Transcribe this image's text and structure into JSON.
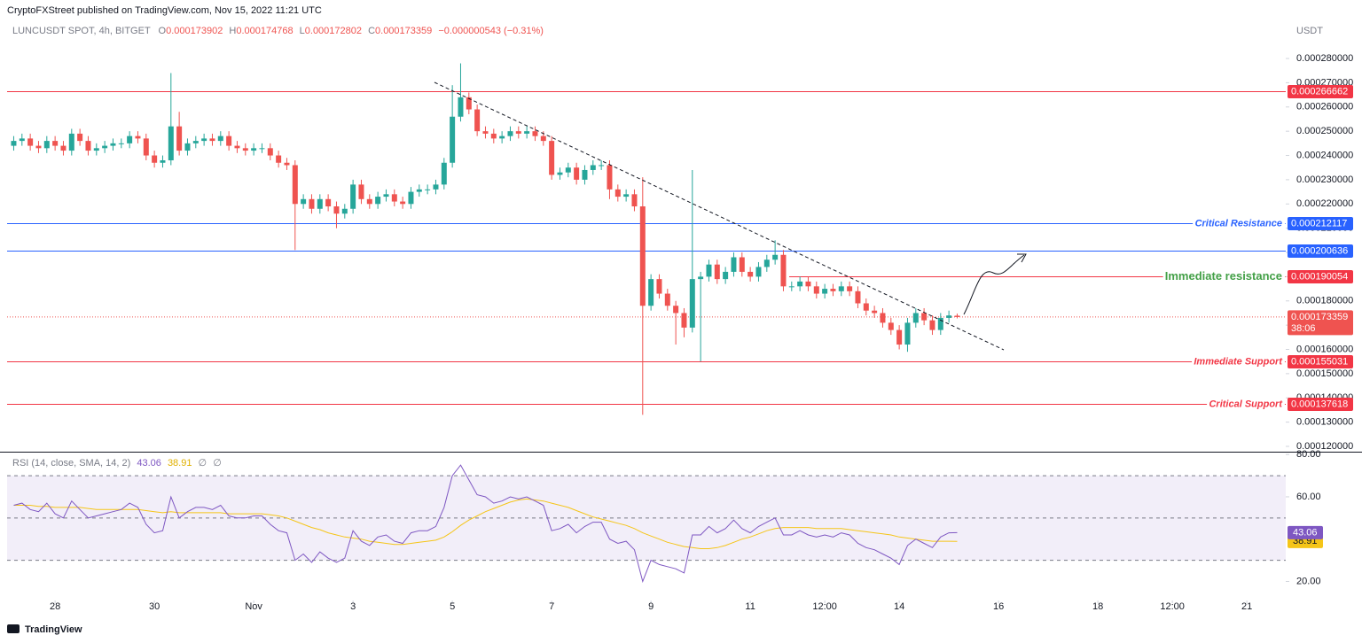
{
  "published": "CryptoFXStreet published on TradingView.com, Nov 15, 2022 11:21 UTC",
  "logo": "TradingView",
  "chart_data": [
    {
      "type": "candlestick",
      "title": "LUNCUSDT SPOT, 4h, BITGET",
      "currency": "USDT",
      "ohlc_labels": [
        "O",
        "H",
        "L",
        "C"
      ],
      "change": "−0.000000543 (−0.31%)",
      "last_price_countdown": "38:06",
      "up_color": "#26a69a",
      "down_color": "#ef5350",
      "grid": false,
      "open": [
        0.000244,
        0.000246,
        0.000247,
        0.000244,
        0.000243,
        0.000246,
        0.000244,
        0.000242,
        0.000249,
        0.000246,
        0.000242,
        0.000243,
        0.000244,
        0.000245,
        0.000245,
        0.000248,
        0.000247,
        0.00024,
        0.000237,
        0.000238,
        0.000252,
        0.000242,
        0.000245,
        0.000246,
        0.000247,
        0.000246,
        0.000248,
        0.000244,
        0.000243,
        0.000242,
        0.000243,
        0.000243,
        0.00024,
        0.000237,
        0.000236,
        0.00022,
        0.000222,
        0.000218,
        0.000222,
        0.000219,
        0.000216,
        0.000218,
        0.000228,
        0.000222,
        0.00022,
        0.000223,
        0.000224,
        0.000221,
        0.00022,
        0.000225,
        0.000226,
        0.000226,
        0.000228,
        0.000237,
        0.000256,
        0.000264,
        0.000259,
        0.00025,
        0.000249,
        0.000247,
        0.000248,
        0.00025,
        0.000249,
        0.00025,
        0.000248,
        0.000246,
        0.000232,
        0.000233,
        0.000235,
        0.00023,
        0.000234,
        0.000236,
        0.000236,
        0.000226,
        0.000223,
        0.000224,
        0.000219,
        0.000178,
        0.000189,
        0.000183,
        0.000178,
        0.000175,
        0.000169,
        0.000189,
        0.00019,
        0.000195,
        0.000189,
        0.000192,
        0.000198,
        0.000192,
        0.00019,
        0.000194,
        0.000197,
        0.000199,
        0.000186,
        0.000186,
        0.000188,
        0.000186,
        0.000183,
        0.000185,
        0.000184,
        0.000186,
        0.000184,
        0.000179,
        0.000176,
        0.000175,
        0.000171,
        0.000168,
        0.000162,
        0.000171,
        0.000175,
        0.000172,
        0.000168,
        0.000173,
        0.000173902
      ],
      "high": [
        0.000248,
        0.000249,
        0.000249,
        0.000246,
        0.000248,
        0.000248,
        0.000246,
        0.000251,
        0.000251,
        0.000248,
        0.000245,
        0.000246,
        0.000247,
        0.000247,
        0.00025,
        0.00025,
        0.000249,
        0.000242,
        0.00024,
        0.000274,
        0.000258,
        0.000247,
        0.000248,
        0.000249,
        0.000249,
        0.00025,
        0.00025,
        0.000246,
        0.000245,
        0.000245,
        0.000245,
        0.000245,
        0.000242,
        0.000239,
        0.000238,
        0.000224,
        0.000224,
        0.000224,
        0.000224,
        0.000221,
        0.00022,
        0.00023,
        0.00023,
        0.000224,
        0.000225,
        0.000226,
        0.000226,
        0.000223,
        0.000227,
        0.000228,
        0.000228,
        0.00023,
        0.000239,
        0.000269,
        0.000278,
        0.000266,
        0.000261,
        0.000252,
        0.000251,
        0.00025,
        0.000252,
        0.000252,
        0.000252,
        0.000252,
        0.00025,
        0.000248,
        0.000235,
        0.000237,
        0.000237,
        0.000236,
        0.000238,
        0.000238,
        0.000238,
        0.000228,
        0.000226,
        0.000226,
        0.000231,
        0.000191,
        0.000191,
        0.000185,
        0.00018,
        0.000177,
        0.000234,
        0.000192,
        0.000197,
        0.000197,
        0.000194,
        0.0002,
        0.0002,
        0.000194,
        0.000196,
        0.000199,
        0.000205,
        0.000201,
        0.000188,
        0.00019,
        0.00019,
        0.000188,
        0.000187,
        0.000187,
        0.000188,
        0.000188,
        0.000186,
        0.000181,
        0.000178,
        0.000177,
        0.000173,
        0.00017,
        0.000173,
        0.000177,
        0.000177,
        0.000174,
        0.000175,
        0.000176,
        0.000174768
      ],
      "low": [
        0.000242,
        0.000244,
        0.000242,
        0.000241,
        0.000241,
        0.000242,
        0.00024,
        0.00024,
        0.000244,
        0.00024,
        0.00024,
        0.000241,
        0.000242,
        0.000243,
        0.000243,
        0.000245,
        0.000238,
        0.000235,
        0.000235,
        0.000236,
        0.00024,
        0.00024,
        0.000243,
        0.000244,
        0.000244,
        0.000244,
        0.000242,
        0.000241,
        0.00024,
        0.00024,
        0.000241,
        0.000238,
        0.000235,
        0.000234,
        0.000201,
        0.000218,
        0.000216,
        0.000216,
        0.000217,
        0.00021,
        0.000214,
        0.000216,
        0.00022,
        0.000218,
        0.000218,
        0.000221,
        0.000219,
        0.000218,
        0.000218,
        0.000223,
        0.000224,
        0.000224,
        0.000226,
        0.000235,
        0.000254,
        0.000257,
        0.000248,
        0.000247,
        0.000245,
        0.000245,
        0.000246,
        0.000247,
        0.000247,
        0.000246,
        0.000244,
        0.00023,
        0.00023,
        0.000231,
        0.000228,
        0.000228,
        0.000232,
        0.000234,
        0.000222,
        0.000221,
        0.000221,
        0.000217,
        0.000133,
        0.000176,
        0.000181,
        0.000176,
        0.000162,
        0.000165,
        0.000167,
        0.000155,
        0.000188,
        0.000187,
        0.000187,
        0.00019,
        0.00019,
        0.000188,
        0.000188,
        0.000192,
        0.000195,
        0.000184,
        0.000184,
        0.000184,
        0.000184,
        0.000181,
        0.000181,
        0.000182,
        0.000182,
        0.000182,
        0.000177,
        0.000174,
        0.000173,
        0.000169,
        0.000166,
        0.00016,
        0.000159,
        0.000169,
        0.00017,
        0.000166,
        0.000166,
        0.000171,
        0.000172802
      ],
      "close": [
        0.000246,
        0.000247,
        0.000244,
        0.000243,
        0.000246,
        0.000244,
        0.000242,
        0.000249,
        0.000246,
        0.000242,
        0.000243,
        0.000244,
        0.000245,
        0.000245,
        0.000248,
        0.000247,
        0.00024,
        0.000237,
        0.000238,
        0.000252,
        0.000242,
        0.000245,
        0.000246,
        0.000247,
        0.000246,
        0.000248,
        0.000244,
        0.000243,
        0.000242,
        0.000243,
        0.000243,
        0.00024,
        0.000237,
        0.000236,
        0.00022,
        0.000222,
        0.000218,
        0.000222,
        0.000219,
        0.000216,
        0.000218,
        0.000228,
        0.000222,
        0.00022,
        0.000223,
        0.000224,
        0.000221,
        0.00022,
        0.000225,
        0.000226,
        0.000226,
        0.000228,
        0.000237,
        0.000256,
        0.000264,
        0.000259,
        0.00025,
        0.000249,
        0.000247,
        0.000248,
        0.00025,
        0.000249,
        0.00025,
        0.000248,
        0.000246,
        0.000232,
        0.000233,
        0.000235,
        0.00023,
        0.000234,
        0.000236,
        0.000236,
        0.000226,
        0.000223,
        0.000224,
        0.000219,
        0.000178,
        0.000189,
        0.000183,
        0.000178,
        0.000175,
        0.000169,
        0.000189,
        0.00019,
        0.000195,
        0.000189,
        0.000192,
        0.000198,
        0.000192,
        0.00019,
        0.000194,
        0.000197,
        0.000199,
        0.000186,
        0.000186,
        0.000188,
        0.000186,
        0.000183,
        0.000185,
        0.000184,
        0.000186,
        0.000184,
        0.000179,
        0.000176,
        0.000175,
        0.000171,
        0.000168,
        0.000162,
        0.000171,
        0.000175,
        0.000172,
        0.000168,
        0.000173,
        0.000174,
        0.000173359
      ],
      "xlim": [
        -0.8,
        153.7
      ],
      "xticks": [
        {
          "value": 5,
          "label": "28"
        },
        {
          "value": 17,
          "label": "30"
        },
        {
          "value": 29,
          "label": "Nov"
        },
        {
          "value": 41,
          "label": "3"
        },
        {
          "value": 53,
          "label": "5"
        },
        {
          "value": 65,
          "label": "7"
        },
        {
          "value": 77,
          "label": "9"
        },
        {
          "value": 89,
          "label": "11"
        },
        {
          "value": 98,
          "label": "12:00"
        },
        {
          "value": 107,
          "label": "14"
        },
        {
          "value": 119,
          "label": "16"
        },
        {
          "value": 131,
          "label": "18"
        },
        {
          "value": 140,
          "label": "12:00"
        },
        {
          "value": 149,
          "label": "21"
        }
      ],
      "ylim": [
        0.0001178,
        0.000295
      ],
      "yticks": [
        {
          "value": 0.00012,
          "label": "0.000120000"
        },
        {
          "value": 0.00013,
          "label": "0.000130000"
        },
        {
          "value": 0.00014,
          "label": "0.000140000"
        },
        {
          "value": 0.00015,
          "label": "0.000150000"
        },
        {
          "value": 0.00016,
          "label": "0.000160000"
        },
        {
          "value": 0.00017,
          "label": "0.000170000"
        },
        {
          "value": 0.00018,
          "label": "0.000180000"
        },
        {
          "value": 0.00019,
          "label": "0.000190000"
        },
        {
          "value": 0.0002,
          "label": "0.000200000"
        },
        {
          "value": 0.00021,
          "label": "0.000210000"
        },
        {
          "value": 0.00022,
          "label": "0.000220000"
        },
        {
          "value": 0.00023,
          "label": "0.000230000"
        },
        {
          "value": 0.00024,
          "label": "0.000240000"
        },
        {
          "value": 0.00025,
          "label": "0.000250000"
        },
        {
          "value": 0.00026,
          "label": "0.000260000"
        },
        {
          "value": 0.00027,
          "label": "0.000270000"
        },
        {
          "value": 0.00028,
          "label": "0.000280000"
        }
      ],
      "levels": [
        {
          "value": 0.000266662,
          "color": "#f23645"
        },
        {
          "value": 0.000212117,
          "color": "#2962ff",
          "label": "Critical Resistance",
          "label_color": "#2962ff"
        },
        {
          "value": 0.000200636,
          "color": "#2962ff"
        },
        {
          "value": 0.000190054,
          "color": "#f23645",
          "label": "Immediate resistance",
          "label_color": "#43a047"
        },
        {
          "value": 0.000155031,
          "color": "#f23645",
          "label": "Immediate Support",
          "label_color": "#f23645"
        },
        {
          "value": 0.000137618,
          "color": "#f23645",
          "label": "Critical Support",
          "label_color": "#f23645"
        }
      ]
    },
    {
      "type": "line",
      "title": "RSI (14, close, SMA, 14, 2)",
      "flags": [
        "∅",
        "∅"
      ],
      "band": [
        30,
        70
      ],
      "midline": 50,
      "band_color": "#7e57c2",
      "ylim": [
        11,
        80.5
      ],
      "yticks": [
        {
          "value": 80,
          "label": "80.00"
        },
        {
          "value": 60,
          "label": "60.00"
        },
        {
          "value": 20,
          "label": "20.00"
        }
      ],
      "series": [
        {
          "color": "#7e57c2",
          "values": [
            56,
            57,
            54,
            53,
            57,
            52,
            50,
            58,
            54,
            50,
            51,
            52,
            53,
            54,
            57,
            55,
            47,
            43,
            44,
            60,
            50,
            53,
            55,
            55,
            54,
            56,
            51,
            50,
            50,
            51,
            51,
            47,
            44,
            43,
            30,
            33,
            29,
            34,
            31,
            29,
            31,
            44,
            39,
            37,
            41,
            42,
            39,
            38,
            43,
            44,
            44,
            46,
            55,
            70,
            75,
            68,
            61,
            60,
            57,
            58,
            60,
            59,
            60,
            58,
            56,
            44,
            45,
            47,
            43,
            46,
            48,
            48,
            40,
            38,
            39,
            35,
            20,
            30,
            28,
            27,
            26,
            24,
            42,
            42,
            46,
            43,
            45,
            49,
            45,
            43,
            46,
            48,
            50,
            42,
            42,
            44,
            42,
            41,
            42,
            41,
            43,
            42,
            38,
            36,
            35,
            33,
            31,
            28,
            37,
            40,
            38,
            36,
            41,
            43,
            43.06
          ]
        },
        {
          "color": "#f5c518",
          "values": [
            56,
            56,
            56,
            55.5,
            55.5,
            55,
            55,
            55,
            55,
            54.5,
            54,
            54,
            54,
            54,
            54,
            54,
            53.5,
            53,
            52.5,
            53,
            52.5,
            52.5,
            52.5,
            52.5,
            52.5,
            52.5,
            52,
            52,
            52,
            52,
            52,
            51.5,
            51,
            50,
            48.5,
            47,
            45.5,
            44.5,
            43,
            42,
            41,
            40.5,
            40,
            39,
            38.5,
            38,
            37.5,
            37.5,
            38,
            38.5,
            39,
            39.5,
            41,
            43.5,
            46.5,
            49,
            51,
            53,
            54.5,
            56,
            57.5,
            58.5,
            59,
            58.5,
            58,
            57,
            56,
            55,
            53.5,
            52,
            50.5,
            49.5,
            48.5,
            47.5,
            46.5,
            45,
            43,
            41.5,
            40,
            38.5,
            37.5,
            36.5,
            36,
            35.5,
            35.5,
            36,
            37,
            38.5,
            40,
            41,
            42.5,
            44,
            45,
            45.5,
            45.5,
            45.5,
            45.5,
            45,
            45,
            45,
            45,
            44.5,
            44,
            43.5,
            43,
            42.5,
            42,
            41,
            40.5,
            40,
            39.5,
            39,
            39,
            39,
            38.91
          ]
        }
      ]
    }
  ]
}
